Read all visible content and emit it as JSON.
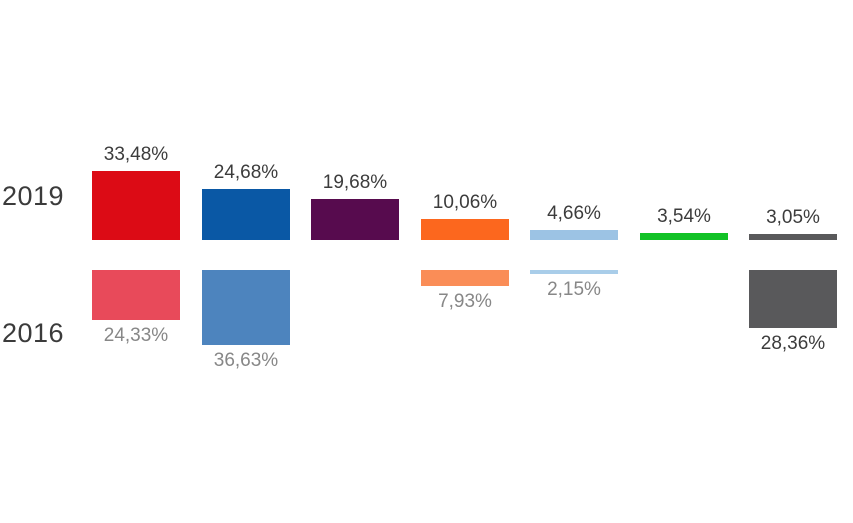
{
  "chart_data": {
    "type": "bar",
    "title": "",
    "layout": "two-row-grouped-columns",
    "value_suffix": "%",
    "decimal_separator": ",",
    "rows": [
      {
        "id": "2019",
        "label": "2019"
      },
      {
        "id": "2016",
        "label": "2016"
      }
    ],
    "label_colors": {
      "dark": "#3c3c3c",
      "muted": "#878787",
      "row_label": "#3b3b3b"
    },
    "series": [
      {
        "id": "red",
        "value_2019": 33.48,
        "display_2019": "33,48%",
        "color_2019": "#dc0b15",
        "value_2016": 24.33,
        "display_2016": "24,33%",
        "color_2016": "#e84a5a",
        "label_2016_style": "muted"
      },
      {
        "id": "dark-blue",
        "value_2019": 24.68,
        "display_2019": "24,68%",
        "color_2019": "#0a58a5",
        "value_2016": 36.63,
        "display_2016": "36,63%",
        "color_2016": "#4d84be",
        "label_2016_style": "muted"
      },
      {
        "id": "purple",
        "value_2019": 19.68,
        "display_2019": "19,68%",
        "color_2019": "#570b4e",
        "value_2016": null,
        "display_2016": null,
        "color_2016": null,
        "label_2016_style": null
      },
      {
        "id": "orange",
        "value_2019": 10.06,
        "display_2019": "10,06%",
        "color_2019": "#fc671e",
        "value_2016": 7.93,
        "display_2016": "7,93%",
        "color_2016": "#fa8d57",
        "label_2016_style": "muted"
      },
      {
        "id": "light-blue",
        "value_2019": 4.66,
        "display_2019": "4,66%",
        "color_2019": "#9cc3e4",
        "value_2016": 2.15,
        "display_2016": "2,15%",
        "color_2016": "#a9cde9",
        "label_2016_style": "muted"
      },
      {
        "id": "green",
        "value_2019": 3.54,
        "display_2019": "3,54%",
        "color_2019": "#12c226",
        "value_2016": null,
        "display_2016": null,
        "color_2016": null,
        "label_2016_style": null
      },
      {
        "id": "dark-gray",
        "value_2019": 3.05,
        "display_2019": "3,05%",
        "color_2019": "#59595b",
        "value_2016": 28.36,
        "display_2016": "28,36%",
        "color_2016": "#59595b",
        "label_2016_style": "dark"
      }
    ]
  }
}
